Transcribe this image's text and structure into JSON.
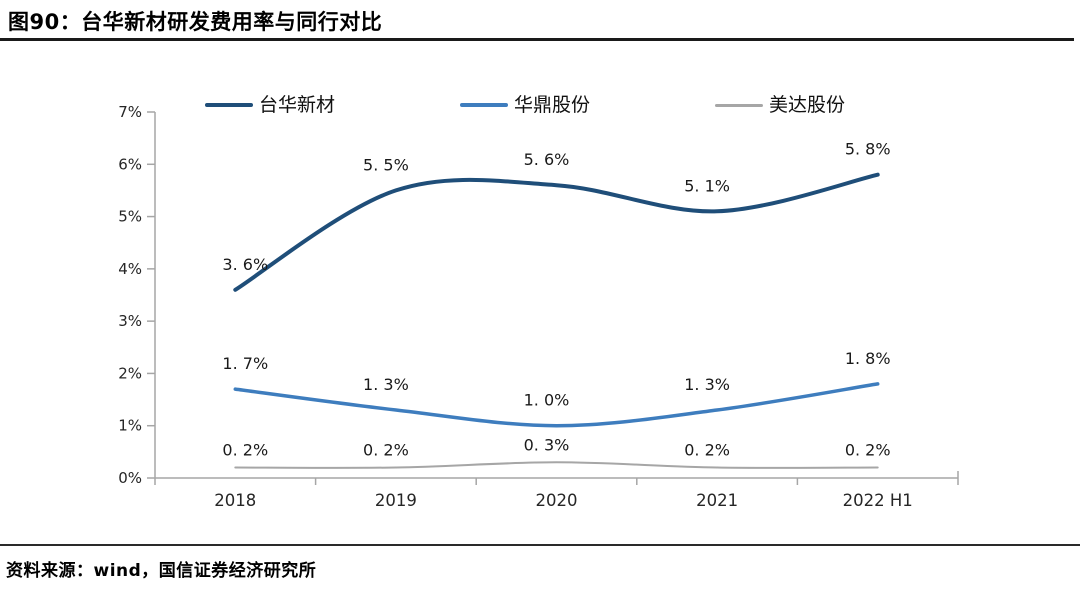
{
  "header": {
    "title": "图90：台华新材研发费用率与同行对比"
  },
  "footer": {
    "source": "资料来源：wind，国信证券经济研究所"
  },
  "chart_data": {
    "type": "line",
    "title": "台华新材研发费用率与同行对比",
    "categories": [
      "2018",
      "2019",
      "2020",
      "2021",
      "2022 H1"
    ],
    "series": [
      {
        "name": "台华新材",
        "values": [
          3.6,
          5.5,
          5.6,
          5.1,
          5.8
        ],
        "point_labels": [
          "3. 6%",
          "5. 5%",
          "5. 6%",
          "5. 1%",
          "5. 8%"
        ],
        "color": "#1f4e79",
        "stroke_width": 4,
        "label_dy": -20
      },
      {
        "name": "华鼎股份",
        "values": [
          1.7,
          1.3,
          1.0,
          1.3,
          1.8
        ],
        "point_labels": [
          "1. 7%",
          "1. 3%",
          "1. 0%",
          "1. 3%",
          "1. 8%"
        ],
        "color": "#3e7dbe",
        "stroke_width": 3.5,
        "label_dy": -20
      },
      {
        "name": "美达股份",
        "values": [
          0.2,
          0.2,
          0.3,
          0.2,
          0.2
        ],
        "point_labels": [
          "0. 2%",
          "0. 2%",
          "0. 3%",
          "0. 2%",
          "0. 2%"
        ],
        "color": "#a6a6a6",
        "stroke_width": 2,
        "label_dy": -12
      }
    ],
    "xlabel": "",
    "ylabel": "",
    "ylim": [
      0,
      7
    ],
    "ytick_step": 1,
    "ytick_labels": [
      "0%",
      "1%",
      "2%",
      "3%",
      "4%",
      "5%",
      "6%",
      "7%"
    ],
    "grid": false,
    "legend_position": "top",
    "smooth": true,
    "axis_color": "#a6a6a6",
    "tick_label_color": "#262626",
    "data_label_color": "#1a1a1a"
  }
}
